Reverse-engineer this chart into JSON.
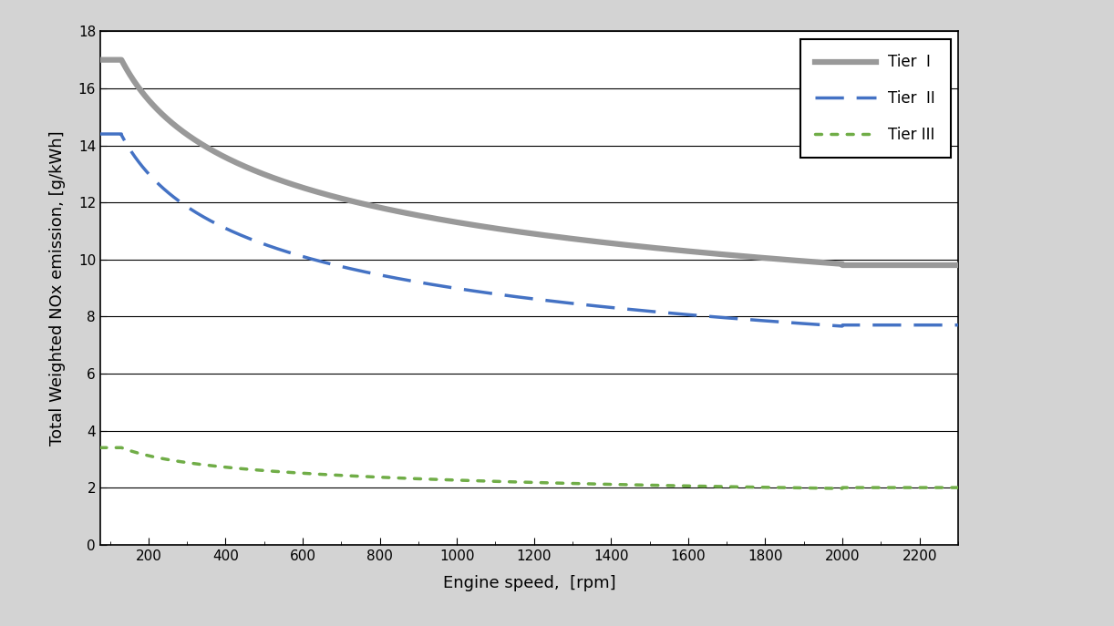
{
  "title": "",
  "xlabel": "Engine speed,  [rpm]",
  "ylabel": "Total Weighted NOx emission, [g/kWh]",
  "xlim": [
    75,
    2300
  ],
  "ylim": [
    0,
    18
  ],
  "yticks": [
    0,
    2,
    4,
    6,
    8,
    10,
    12,
    14,
    16,
    18
  ],
  "xticks": [
    200,
    400,
    600,
    800,
    1000,
    1200,
    1400,
    1600,
    1800,
    2000,
    2200
  ],
  "background_color": "#d3d3d3",
  "plot_bg_color": "#ffffff",
  "tier1_color": "#999999",
  "tier2_color": "#4472c4",
  "tier3_color": "#70ad47",
  "legend_labels": [
    "Tier  I",
    "Tier  II",
    "Tier III"
  ],
  "tier1_lw": 4.5,
  "tier2_lw": 2.5,
  "tier3_lw": 2.5
}
